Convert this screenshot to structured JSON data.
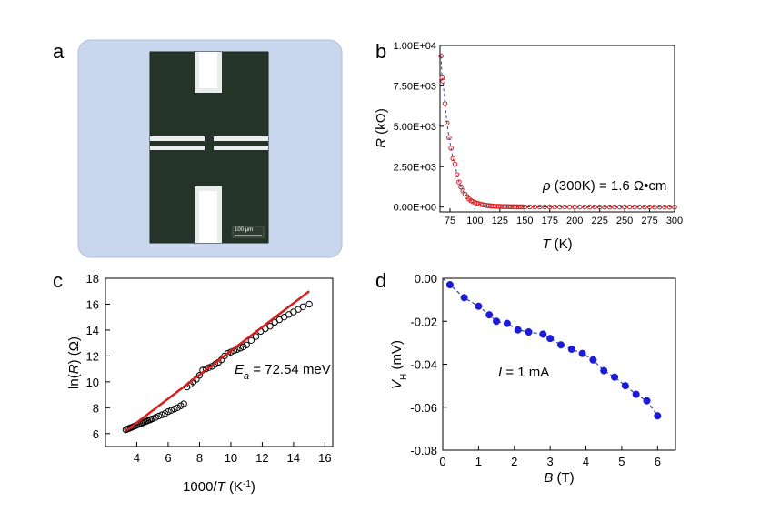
{
  "panels": {
    "a": {
      "letter": "a",
      "scale_bar_label": "100 μm"
    },
    "b": {
      "letter": "b"
    },
    "c": {
      "letter": "c"
    },
    "d": {
      "letter": "d"
    }
  },
  "colors": {
    "micrograph_frame": "#c9d7ee",
    "micrograph_bg": "#243326",
    "red": "#d71e1e",
    "blue": "#1b1bd8",
    "dashed_blue": "#3a3ab0"
  },
  "chart_data": [
    {
      "id": "b",
      "type": "scatter",
      "xlabel_var": "T",
      "xlabel_unit": " (K)",
      "ylabel_var": "R",
      "ylabel_unit": " (kΩ)",
      "xlim": [
        65,
        300
      ],
      "ylim": [
        -300,
        10000
      ],
      "xticks": [
        75,
        100,
        125,
        150,
        175,
        200,
        225,
        250,
        275,
        300
      ],
      "yticks": [
        0,
        2500,
        5000,
        7500,
        10000
      ],
      "ytick_labels": [
        "0.00E+00",
        "2.50E+03",
        "5.00E+03",
        "7.50E+03",
        "1.00E+04"
      ],
      "annotation": {
        "var": "ρ",
        "text": " (300K) = 1.6 Ω•cm"
      },
      "series": [
        {
          "x": [
            66,
            67,
            68,
            70,
            72,
            74,
            76,
            78,
            80,
            82,
            84,
            86,
            88,
            90,
            92,
            94,
            96,
            98,
            100,
            102,
            104,
            106,
            108,
            110,
            112,
            114,
            116,
            118,
            120,
            122,
            124,
            126,
            128,
            130,
            132,
            134,
            136,
            138,
            140,
            142,
            144,
            146,
            148,
            150,
            155,
            160,
            165,
            170,
            175,
            180,
            185,
            190,
            195,
            200,
            205,
            210,
            215,
            220,
            225,
            230,
            235,
            240,
            245,
            250,
            255,
            260,
            265,
            270,
            275,
            280,
            285,
            290,
            295,
            300
          ],
          "y": [
            9350,
            8000,
            7800,
            6400,
            5200,
            4300,
            3650,
            3000,
            2650,
            2000,
            1550,
            1250,
            1000,
            800,
            650,
            500,
            400,
            330,
            280,
            240,
            200,
            170,
            140,
            120,
            100,
            85,
            70,
            60,
            50,
            45,
            40,
            35,
            30,
            28,
            25,
            22,
            20,
            18,
            16,
            15,
            13,
            12,
            11,
            10,
            9,
            8,
            7,
            7,
            6,
            6,
            5,
            5,
            5,
            4,
            4,
            4,
            4,
            3,
            3,
            3,
            3,
            3,
            3,
            2,
            2,
            2,
            2,
            2,
            2,
            2,
            2,
            2,
            2,
            2
          ]
        }
      ]
    },
    {
      "id": "c",
      "type": "scatter",
      "xlabel": "1000/",
      "xlabel_var": "T",
      "xlabel_unit": " (K",
      "ylabel_pre": "ln(",
      "ylabel_var": "R",
      "ylabel_post": ") (Ω)",
      "xlim": [
        2,
        16.5
      ],
      "ylim": [
        5,
        18
      ],
      "xticks": [
        4,
        6,
        8,
        10,
        12,
        14,
        16
      ],
      "yticks": [
        6,
        8,
        10,
        12,
        14,
        16,
        18
      ],
      "annotation": {
        "var": "E",
        "sub": "a",
        "text": " = 72.54 meV"
      },
      "series": [
        {
          "x": [
            3.3,
            3.4,
            3.5,
            3.6,
            3.7,
            3.8,
            3.9,
            4.0,
            4.1,
            4.2,
            4.3,
            4.4,
            4.5,
            4.6,
            4.7,
            4.8,
            4.9,
            5.0,
            5.2,
            5.4,
            5.6,
            5.8,
            6.0,
            6.2,
            6.4,
            6.6,
            6.8,
            7.0,
            7.2,
            7.4,
            7.6,
            7.8,
            8.0,
            8.2,
            8.4,
            8.6,
            8.8,
            9.0,
            9.2,
            9.4,
            9.6,
            9.8,
            10.0,
            10.2,
            10.4,
            10.6,
            10.8,
            11.0,
            11.3,
            11.6,
            11.9,
            12.2,
            12.5,
            12.8,
            13.1,
            13.4,
            13.7,
            14.0,
            14.3,
            14.6,
            15.0
          ],
          "y": [
            6.3,
            6.35,
            6.4,
            6.45,
            6.5,
            6.55,
            6.6,
            6.65,
            6.7,
            6.75,
            6.8,
            6.85,
            6.9,
            6.95,
            7.0,
            7.05,
            7.1,
            7.15,
            7.25,
            7.35,
            7.45,
            7.55,
            7.7,
            7.8,
            7.9,
            8.0,
            8.15,
            8.3,
            9.6,
            9.8,
            10.0,
            10.2,
            10.5,
            10.9,
            11.0,
            11.1,
            11.2,
            11.35,
            11.5,
            11.7,
            12.0,
            12.2,
            12.3,
            12.4,
            12.5,
            12.6,
            12.7,
            12.85,
            13.2,
            13.5,
            13.9,
            14.1,
            14.3,
            14.6,
            14.8,
            15.0,
            15.2,
            15.4,
            15.6,
            15.8,
            16.0
          ]
        }
      ],
      "fit": {
        "x": [
          3.3,
          15.0
        ],
        "y": [
          6.2,
          17.0
        ]
      }
    },
    {
      "id": "d",
      "type": "line",
      "xlabel_var": "B",
      "xlabel_unit": " (T)",
      "ylabel_var": "V",
      "ylabel_sub": "H",
      "ylabel_unit": " (mV)",
      "xlim": [
        0,
        6.5
      ],
      "ylim": [
        -0.08,
        0.0
      ],
      "xticks": [
        0,
        1,
        2,
        3,
        4,
        5,
        6
      ],
      "yticks": [
        0.0,
        -0.02,
        -0.04,
        -0.06,
        -0.08
      ],
      "ytick_labels": [
        "0.00",
        "-0.02",
        "-0.04",
        "-0.06",
        "-0.08"
      ],
      "annotation": {
        "var": "I",
        "text": " = 1 mA"
      },
      "series": [
        {
          "x": [
            0.2,
            0.6,
            1.0,
            1.3,
            1.5,
            1.8,
            2.1,
            2.4,
            2.8,
            3.0,
            3.3,
            3.6,
            3.9,
            4.2,
            4.5,
            4.8,
            5.1,
            5.4,
            5.7,
            6.0
          ],
          "y": [
            -0.003,
            -0.009,
            -0.013,
            -0.017,
            -0.02,
            -0.021,
            -0.024,
            -0.025,
            -0.026,
            -0.028,
            -0.031,
            -0.033,
            -0.035,
            -0.038,
            -0.043,
            -0.046,
            -0.05,
            -0.054,
            -0.057,
            -0.064
          ]
        }
      ]
    }
  ]
}
